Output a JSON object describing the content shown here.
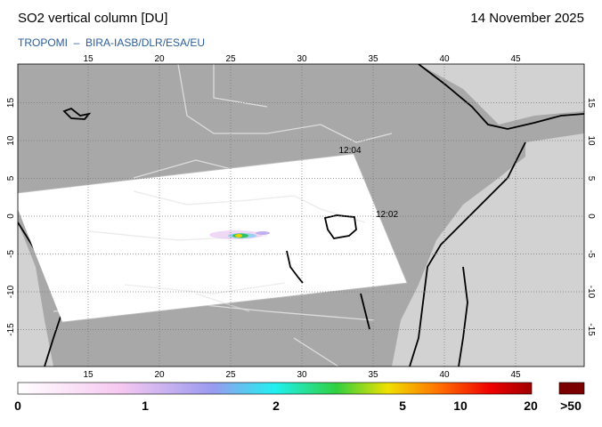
{
  "header": {
    "title": "SO2 vertical column [DU]",
    "date": "14 November 2025",
    "source": "TROPOMI  –  BIRA-IASB/DLR/ESA/EU"
  },
  "map": {
    "lon_ticks": [
      15,
      20,
      25,
      30,
      35,
      40,
      45
    ],
    "lat_ticks": [
      15,
      10,
      5,
      0,
      -5,
      -10,
      -15
    ],
    "time_labels": [
      "12:04",
      "12:02"
    ]
  },
  "colorbar": {
    "labels": [
      0,
      1,
      2,
      5,
      10,
      20,
      ">50"
    ]
  }
}
